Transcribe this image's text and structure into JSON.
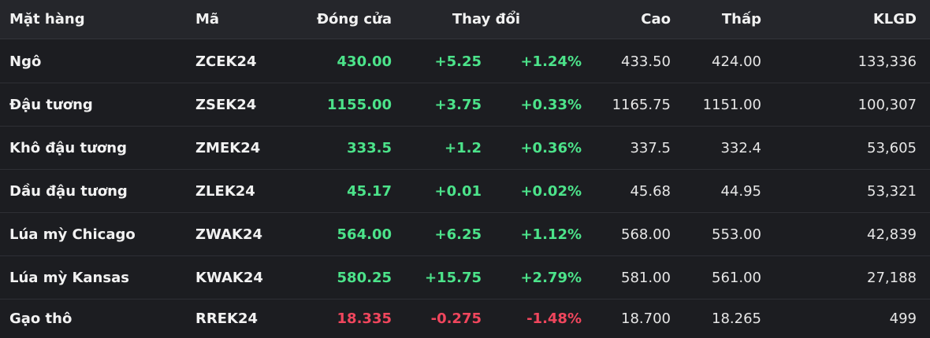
{
  "colors": {
    "up": "#4ce38a",
    "down": "#f0465d"
  },
  "headers": {
    "name": "Mặt hàng",
    "code": "Mã",
    "close": "Đóng cửa",
    "change": "Thay đổi",
    "high": "Cao",
    "low": "Thấp",
    "volume": "KLGD"
  },
  "rows": [
    {
      "name": "Ngô",
      "code": "ZCEK24",
      "close": "430.00",
      "change": "+5.25",
      "pct": "+1.24%",
      "high": "433.50",
      "low": "424.00",
      "volume": "133,336",
      "trend": "up"
    },
    {
      "name": "Đậu tương",
      "code": "ZSEK24",
      "close": "1155.00",
      "change": "+3.75",
      "pct": "+0.33%",
      "high": "1165.75",
      "low": "1151.00",
      "volume": "100,307",
      "trend": "up"
    },
    {
      "name": "Khô đậu tương",
      "code": "ZMEK24",
      "close": "333.5",
      "change": "+1.2",
      "pct": "+0.36%",
      "high": "337.5",
      "low": "332.4",
      "volume": "53,605",
      "trend": "up"
    },
    {
      "name": "Dầu đậu tương",
      "code": "ZLEK24",
      "close": "45.17",
      "change": "+0.01",
      "pct": "+0.02%",
      "high": "45.68",
      "low": "44.95",
      "volume": "53,321",
      "trend": "up"
    },
    {
      "name": "Lúa mỳ Chicago",
      "code": "ZWAK24",
      "close": "564.00",
      "change": "+6.25",
      "pct": "+1.12%",
      "high": "568.00",
      "low": "553.00",
      "volume": "42,839",
      "trend": "up"
    },
    {
      "name": "Lúa mỳ Kansas",
      "code": "KWAK24",
      "close": "580.25",
      "change": "+15.75",
      "pct": "+2.79%",
      "high": "581.00",
      "low": "561.00",
      "volume": "27,188",
      "trend": "up"
    },
    {
      "name": "Gạo thô",
      "code": "RREK24",
      "close": "18.335",
      "change": "-0.275",
      "pct": "-1.48%",
      "high": "18.700",
      "low": "18.265",
      "volume": "499",
      "trend": "down"
    }
  ]
}
